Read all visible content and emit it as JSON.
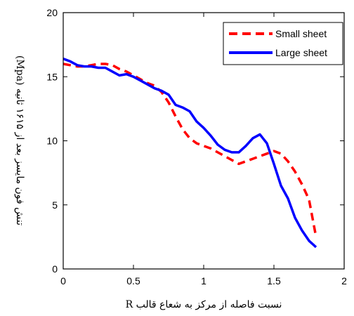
{
  "chart_data": {
    "type": "line",
    "xlabel": "نسبت فاصله از مرکز به شعاع قالب R",
    "ylabel": "تنش فون مایسز بعد از ۱۶۱۵ ثانیه (Mpa)",
    "xlim": [
      0,
      2
    ],
    "ylim": [
      0,
      20
    ],
    "xticks": [
      0,
      0.5,
      1,
      1.5,
      2
    ],
    "xtick_labels": [
      "0",
      "0.5",
      "1",
      "1.5",
      "2"
    ],
    "yticks": [
      0,
      5,
      10,
      15,
      20
    ],
    "ytick_labels": [
      "0",
      "5",
      "10",
      "15",
      "20"
    ],
    "grid": false,
    "legend_position": "top-right",
    "series": [
      {
        "name": "Small sheet",
        "color": "#ff0000",
        "style": "dashed",
        "x": [
          0,
          0.05,
          0.1,
          0.15,
          0.2,
          0.25,
          0.3,
          0.35,
          0.4,
          0.45,
          0.5,
          0.55,
          0.6,
          0.65,
          0.7,
          0.75,
          0.8,
          0.85,
          0.9,
          0.95,
          1.0,
          1.05,
          1.1,
          1.15,
          1.2,
          1.25,
          1.3,
          1.35,
          1.4,
          1.45,
          1.5,
          1.55,
          1.6,
          1.65,
          1.7,
          1.75,
          1.8
        ],
        "y": [
          16.0,
          15.9,
          15.8,
          15.8,
          15.9,
          16.0,
          16.0,
          15.9,
          15.6,
          15.4,
          15.1,
          14.8,
          14.5,
          14.3,
          13.8,
          13.0,
          11.9,
          10.9,
          10.2,
          9.8,
          9.6,
          9.4,
          9.1,
          8.8,
          8.5,
          8.2,
          8.4,
          8.6,
          8.8,
          9.0,
          9.2,
          9.0,
          8.4,
          7.6,
          6.6,
          5.4,
          2.5
        ]
      },
      {
        "name": "Large sheet",
        "color": "#0000ff",
        "style": "solid",
        "x": [
          0,
          0.05,
          0.1,
          0.15,
          0.2,
          0.25,
          0.3,
          0.35,
          0.4,
          0.45,
          0.5,
          0.55,
          0.6,
          0.65,
          0.7,
          0.75,
          0.8,
          0.85,
          0.9,
          0.95,
          1.0,
          1.05,
          1.1,
          1.15,
          1.2,
          1.25,
          1.3,
          1.35,
          1.4,
          1.45,
          1.5,
          1.55,
          1.6,
          1.65,
          1.7,
          1.75,
          1.8
        ],
        "y": [
          16.4,
          16.2,
          15.9,
          15.8,
          15.8,
          15.7,
          15.7,
          15.4,
          15.1,
          15.2,
          15.0,
          14.7,
          14.4,
          14.1,
          13.9,
          13.6,
          12.8,
          12.6,
          12.3,
          11.5,
          11.0,
          10.4,
          9.7,
          9.3,
          9.1,
          9.1,
          9.6,
          10.2,
          10.5,
          9.8,
          8.2,
          6.5,
          5.5,
          4.0,
          3.0,
          2.2,
          1.7
        ]
      }
    ]
  }
}
